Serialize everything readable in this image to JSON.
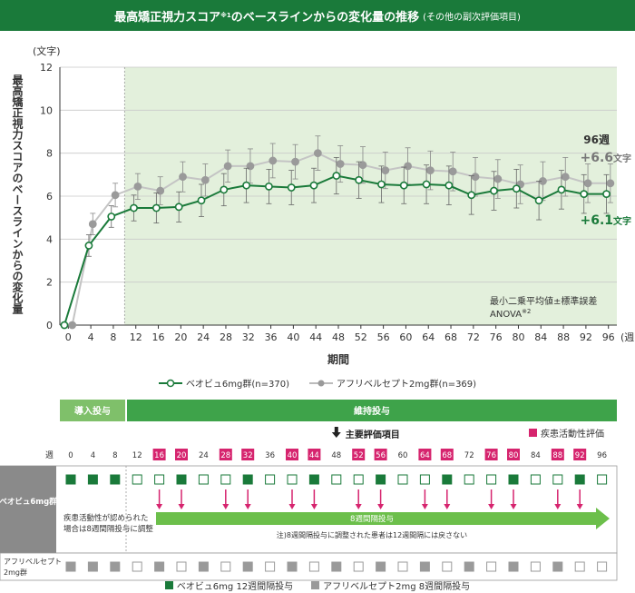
{
  "title": {
    "main": "最高矯正視力スコア",
    "sup": "※1",
    "main2": "のベースラインからの変化量の推移",
    "sub": "(その他の副次評価項目)"
  },
  "colors": {
    "green": "#1a7a3a",
    "green_light_bg": "#e3f0dc",
    "gray": "#9a9a9a",
    "magenta": "#d6246e",
    "arrow_green": "#6cbf4b"
  },
  "chart_data": {
    "type": "line",
    "title": "最高矯正視力スコアのベースラインからの変化量の推移",
    "ylabel": "最高矯正視力スコアのベースラインからの変化量",
    "yunit": "(文字)",
    "xlabel": "期間",
    "xunit": "(週)",
    "ylim": [
      0,
      12
    ],
    "yticks": [
      0,
      2,
      4,
      6,
      8,
      10,
      12
    ],
    "x": [
      0,
      4,
      8,
      12,
      16,
      20,
      24,
      28,
      32,
      36,
      40,
      44,
      48,
      52,
      56,
      60,
      64,
      68,
      72,
      76,
      80,
      84,
      88,
      92,
      96
    ],
    "maintenance_start_week": 10,
    "series": [
      {
        "name": "ベオビュ6mg群(n=370)",
        "values": [
          0,
          3.7,
          5.05,
          5.45,
          5.45,
          5.5,
          5.8,
          6.3,
          6.5,
          6.45,
          6.4,
          6.5,
          6.95,
          6.75,
          6.55,
          6.5,
          6.55,
          6.5,
          6.05,
          6.25,
          6.35,
          5.8,
          6.3,
          6.1,
          6.1
        ],
        "err": [
          0,
          0.5,
          0.5,
          0.6,
          0.7,
          0.7,
          0.75,
          0.75,
          0.8,
          0.8,
          0.8,
          0.8,
          0.85,
          0.85,
          0.85,
          0.85,
          0.9,
          0.9,
          0.9,
          0.9,
          0.9,
          0.9,
          0.9,
          0.9,
          0.9
        ]
      },
      {
        "name": "アフリベルセプト2mg群(n=369)",
        "values": [
          0,
          4.7,
          6.05,
          6.45,
          6.25,
          6.9,
          6.75,
          7.4,
          7.4,
          7.65,
          7.6,
          8.0,
          7.5,
          7.45,
          7.2,
          7.4,
          7.2,
          7.15,
          6.9,
          6.8,
          6.55,
          6.7,
          6.9,
          6.6,
          6.6
        ],
        "err": [
          0,
          0.5,
          0.55,
          0.6,
          0.65,
          0.7,
          0.75,
          0.75,
          0.8,
          0.8,
          0.8,
          0.8,
          0.85,
          0.85,
          0.85,
          0.85,
          0.9,
          0.9,
          0.9,
          0.9,
          0.9,
          0.9,
          0.9,
          0.9,
          0.9
        ]
      }
    ],
    "annotations": {
      "week96_label": "96週",
      "gray_final": "+6.6",
      "green_final": "+6.1",
      "unit_suffix": "文字",
      "stats_line1": "最小二乗平均値±標準誤差",
      "stats_line2": "ANOVA",
      "stats_sup": "※2"
    }
  },
  "legend": {
    "green": "ベオビュ6mg群(n=370)",
    "gray": "アフリベルセプト2mg群(n=369)"
  },
  "schedule": {
    "phase_induction": "導入投与",
    "phase_maintenance": "維持投与",
    "main_endpoint": "主要評価項目",
    "disease_activity_label": "疾患活動性評価",
    "week_header": "週",
    "weeks": [
      0,
      4,
      8,
      12,
      16,
      20,
      24,
      28,
      32,
      36,
      40,
      44,
      48,
      52,
      56,
      60,
      64,
      68,
      72,
      76,
      80,
      84,
      88,
      92,
      96
    ],
    "disease_activity_weeks": [
      16,
      20,
      28,
      32,
      40,
      44,
      52,
      56,
      64,
      68,
      76,
      80,
      88,
      92
    ],
    "beovu_row_label": "ベオビュ6mg群",
    "beovu_dose_weeks": [
      0,
      4,
      8,
      20,
      32,
      44,
      56,
      68,
      80,
      92
    ],
    "beovu_arrow_weeks": [
      16,
      20,
      28,
      32,
      40,
      44,
      52,
      56,
      64,
      68,
      76,
      80,
      88,
      92
    ],
    "note_line1": "疾患活動性が認められた",
    "note_line2": "場合は8週間隔投与に調整",
    "arrow_label": "8週間隔投与",
    "arrow_note": "注)8週間隔投与に調整された患者は12週間隔には戻さない",
    "aflib_row_label1": "アフリベルセプト",
    "aflib_row_label2": "2mg群",
    "aflib_dose_weeks": [
      0,
      4,
      8,
      16,
      24,
      32,
      40,
      48,
      56,
      64,
      72,
      80,
      88
    ]
  },
  "bottom_legend": {
    "green": "ベオビュ6mg 12週間隔投与",
    "gray": "アフリベルセプト2mg 8週間隔投与"
  }
}
